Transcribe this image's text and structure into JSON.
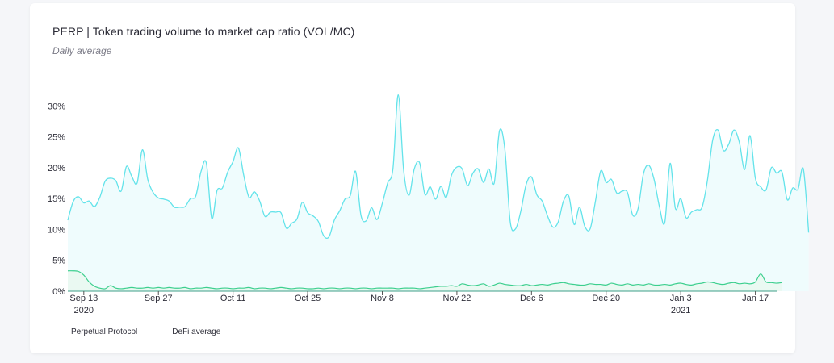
{
  "title": "PERP | Token trading volume to market cap ratio (VOL/MC)",
  "subtitle": "Daily average",
  "colors": {
    "perp": "#3ccf8e",
    "defi": "#63e3ea",
    "defi_fill": "#effcfd",
    "baseline": "#3f9f8a"
  },
  "legend": [
    {
      "label": "Perpetual Protocol",
      "color": "#3ccf8e"
    },
    {
      "label": "DeFi average",
      "color": "#63e3ea"
    }
  ],
  "chart_data": {
    "type": "line",
    "title": "PERP | Token trading volume to market cap ratio (VOL/MC)",
    "subtitle": "Daily average",
    "y_ticks": [
      "0%",
      "5%",
      "10%",
      "15%",
      "20%",
      "25%",
      "30%"
    ],
    "ylim": [
      0,
      32
    ],
    "x_ticks": [
      {
        "label": "Sep 13",
        "year": "2020",
        "day": 3
      },
      {
        "label": "Sep 27",
        "year": "",
        "day": 17
      },
      {
        "label": "Oct 11",
        "year": "",
        "day": 31
      },
      {
        "label": "Oct 25",
        "year": "",
        "day": 45
      },
      {
        "label": "Nov 8",
        "year": "",
        "day": 59
      },
      {
        "label": "Nov 22",
        "year": "",
        "day": 73
      },
      {
        "label": "Dec 6",
        "year": "",
        "day": 87
      },
      {
        "label": "Dec 20",
        "year": "",
        "day": 101
      },
      {
        "label": "Jan 3",
        "year": "2021",
        "day": 115
      },
      {
        "label": "Jan 17",
        "year": "",
        "day": 129
      }
    ],
    "start_date": "Sep 10 2020",
    "xlim": [
      0,
      133
    ],
    "series": [
      {
        "name": "Perpetual Protocol",
        "values": [
          3.3,
          3.3,
          3.2,
          2.6,
          1.5,
          0.8,
          0.5,
          0.4,
          0.9,
          0.5,
          0.4,
          0.5,
          0.6,
          0.5,
          0.5,
          0.6,
          0.5,
          0.6,
          0.5,
          0.6,
          0.5,
          0.5,
          0.6,
          0.4,
          0.5,
          0.5,
          0.6,
          0.5,
          0.4,
          0.5,
          0.5,
          0.4,
          0.5,
          0.5,
          0.6,
          0.4,
          0.5,
          0.5,
          0.4,
          0.5,
          0.6,
          0.5,
          0.4,
          0.5,
          0.5,
          0.4,
          0.4,
          0.5,
          0.4,
          0.5,
          0.5,
          0.4,
          0.5,
          0.5,
          0.4,
          0.5,
          0.5,
          0.4,
          0.5,
          0.5,
          0.5,
          0.5,
          0.4,
          0.5,
          0.5,
          0.5,
          0.4,
          0.5,
          0.6,
          0.7,
          0.8,
          0.8,
          0.9,
          0.8,
          1.2,
          1.0,
          0.9,
          1.0,
          1.2,
          0.8,
          1.0,
          1.3,
          1.1,
          1.0,
          0.9,
          0.9,
          1.1,
          0.9,
          1.0,
          1.1,
          1.0,
          1.2,
          1.3,
          1.4,
          1.2,
          1.1,
          1.0,
          1.0,
          1.2,
          1.1,
          1.1,
          1.0,
          1.3,
          1.1,
          1.0,
          1.2,
          1.0,
          1.1,
          1.0,
          1.2,
          1.0,
          1.0,
          1.1,
          1.0,
          1.2,
          1.3,
          1.1,
          1.0,
          1.2,
          1.3,
          1.5,
          1.4,
          1.2,
          1.1,
          1.3,
          1.4,
          1.2,
          1.3,
          1.2,
          1.5,
          2.8,
          1.5,
          1.4,
          1.3,
          1.4
        ]
      },
      {
        "name": "DeFi average",
        "values": [
          11.5,
          14.5,
          15.3,
          14.3,
          14.6,
          13.7,
          15.2,
          17.8,
          18.3,
          17.9,
          16.2,
          20.2,
          18.6,
          17.5,
          22.9,
          18.1,
          16.0,
          15.1,
          14.9,
          14.6,
          13.6,
          13.6,
          13.7,
          15.0,
          15.4,
          19.4,
          20.7,
          11.8,
          16.3,
          16.7,
          19.3,
          21.0,
          23.2,
          18.8,
          15.2,
          16.1,
          14.6,
          12.1,
          12.8,
          12.8,
          12.7,
          10.2,
          11.0,
          11.7,
          14.4,
          12.7,
          12.2,
          11.3,
          9.0,
          8.8,
          11.5,
          13.0,
          14.9,
          15.5,
          19.4,
          12.3,
          11.4,
          13.5,
          11.6,
          14.2,
          17.5,
          19.8,
          31.8,
          19.7,
          15.5,
          19.8,
          20.8,
          15.7,
          16.9,
          14.9,
          17.0,
          15.2,
          18.8,
          20.1,
          19.8,
          17.1,
          19.1,
          19.8,
          17.6,
          19.8,
          17.5,
          26.0,
          23.0,
          11.3,
          10.1,
          13.0,
          17.3,
          18.5,
          15.6,
          14.6,
          12.2,
          10.4,
          11.2,
          14.6,
          15.4,
          10.8,
          13.6,
          10.5,
          10.1,
          14.6,
          19.5,
          17.6,
          18.1,
          15.9,
          16.2,
          16.0,
          12.3,
          13.4,
          19.0,
          20.4,
          18.1,
          13.7,
          11.1,
          20.7,
          13.4,
          15.0,
          11.9,
          12.8,
          13.2,
          13.6,
          17.9,
          24.5,
          26.1,
          22.8,
          23.8,
          26.1,
          24.1,
          19.7,
          25.2,
          18.3,
          16.9,
          16.4,
          20.0,
          19.1,
          19.3,
          14.8,
          16.7,
          16.5,
          19.8,
          9.5
        ]
      }
    ]
  }
}
